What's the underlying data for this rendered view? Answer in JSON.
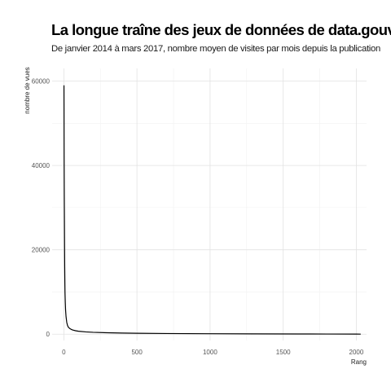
{
  "chart_data": {
    "type": "line",
    "title": "La longue traîne des jeux de données de data.gouv.fr",
    "subtitle": "De janvier 2014 à mars 2017, nombre moyen de visites par mois depuis la publication",
    "xlabel": "Rang",
    "ylabel": "nombre de vues",
    "xlim": [
      -80,
      2070
    ],
    "ylim": [
      -1500,
      63000
    ],
    "x_ticks": [
      0,
      500,
      1000,
      1500,
      2000
    ],
    "y_ticks": [
      0,
      20000,
      40000,
      60000
    ],
    "x_tick_labels": [
      "0",
      "500",
      "1000",
      "1500",
      "2000"
    ],
    "y_tick_labels": [
      "0",
      "20000",
      "40000",
      "60000"
    ],
    "grid": true,
    "series": [
      {
        "x": [
          1,
          2,
          3,
          4,
          5,
          6,
          7,
          8,
          10,
          12,
          15,
          20,
          25,
          30,
          40,
          50,
          60,
          80,
          100,
          150,
          200,
          300,
          400,
          500,
          700,
          1000,
          1300,
          1600,
          1800,
          2000,
          2030
        ],
        "values": [
          59000,
          42000,
          33000,
          27000,
          21000,
          16000,
          12500,
          10000,
          7500,
          5700,
          4200,
          2800,
          2100,
          1700,
          1350,
          1150,
          1000,
          820,
          700,
          540,
          440,
          330,
          260,
          210,
          150,
          100,
          70,
          45,
          30,
          15,
          10
        ]
      }
    ]
  }
}
